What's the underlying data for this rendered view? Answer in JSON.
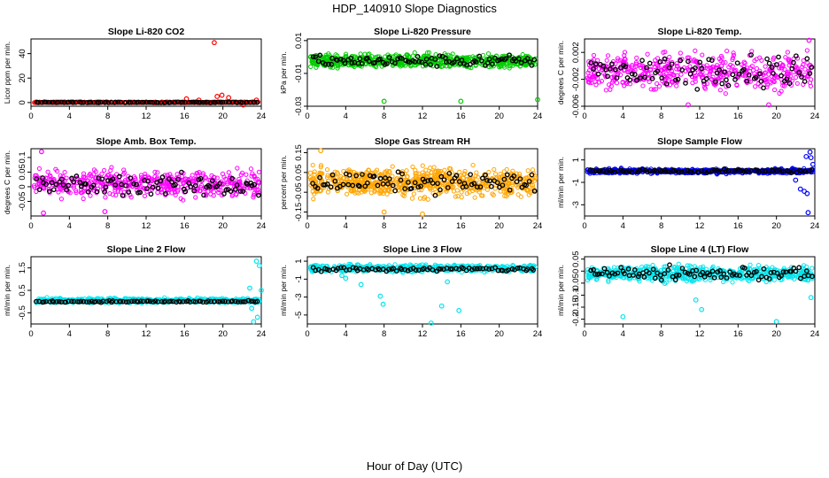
{
  "page": {
    "title": "HDP_140910  Slope Diagnostics",
    "xlabel": "Hour of Day (UTC)"
  },
  "chart_data": [
    {
      "type": "scatter",
      "title": "Slope Li-820 CO2",
      "ylabel": "Licor ppm per min.",
      "xlim": [
        0,
        24
      ],
      "ylim": [
        -3,
        52
      ],
      "xticks": [
        0,
        4,
        8,
        12,
        16,
        20,
        24
      ],
      "yticks": [
        0,
        20,
        40
      ],
      "color": "#ff0000",
      "base": {
        "center": 0.2,
        "spread": 0.6,
        "count": 450
      },
      "outliers": [
        {
          "x": 19.1,
          "y": 49
        },
        {
          "x": 19.4,
          "y": 5
        },
        {
          "x": 19.9,
          "y": 6
        },
        {
          "x": 16.2,
          "y": 3
        },
        {
          "x": 17.5,
          "y": 2
        },
        {
          "x": 20.6,
          "y": 4
        },
        {
          "x": 22.1,
          "y": -2
        },
        {
          "x": 23.5,
          "y": 2
        }
      ],
      "overlay": {
        "center": 0.1,
        "spread": 0.4,
        "count": 90
      }
    },
    {
      "type": "scatter",
      "title": "Slope Li-820 Pressure",
      "ylabel": "kPa per min.",
      "xlim": [
        0,
        24
      ],
      "ylim": [
        -0.03,
        0.011
      ],
      "xticks": [
        0,
        4,
        8,
        12,
        16,
        20,
        24
      ],
      "yticks": [
        -0.03,
        -0.01,
        0.01
      ],
      "color": "#00cc00",
      "base": {
        "center": -0.0025,
        "spread": 0.006,
        "count": 600
      },
      "outliers": [
        {
          "x": 8.0,
          "y": -0.027
        },
        {
          "x": 16.0,
          "y": -0.027
        },
        {
          "x": 24.0,
          "y": -0.026
        }
      ],
      "overlay": {
        "center": -0.0025,
        "spread": 0.005,
        "count": 90
      }
    },
    {
      "type": "scatter",
      "title": "Slope Li-820 Temp.",
      "ylabel": "degrees C per min.",
      "xlim": [
        0,
        24
      ],
      "ylim": [
        -0.006,
        0.004
      ],
      "xticks": [
        0,
        4,
        8,
        12,
        16,
        20,
        24
      ],
      "yticks": [
        -0.006,
        -0.002,
        0.002
      ],
      "color": "#ff00ff",
      "base": {
        "center": -0.0008,
        "spread": 0.0038,
        "count": 500
      },
      "outliers": [
        {
          "x": 10.8,
          "y": -0.0058
        },
        {
          "x": 19.2,
          "y": -0.0058
        },
        {
          "x": 23.4,
          "y": 0.0038
        }
      ],
      "overlay": {
        "center": -0.0008,
        "spread": 0.0035,
        "count": 90
      }
    },
    {
      "type": "scatter",
      "title": "Slope Amb. Box Temp.",
      "ylabel": "degrees C per min.",
      "xlim": [
        0,
        24
      ],
      "ylim": [
        -0.1,
        0.13
      ],
      "xticks": [
        0,
        4,
        8,
        12,
        16,
        20,
        24
      ],
      "yticks": [
        -0.05,
        0.0,
        0.05,
        0.1
      ],
      "color": "#ff00ff",
      "base": {
        "center": 0.01,
        "spread": 0.065,
        "count": 500
      },
      "outliers": [
        {
          "x": 1.1,
          "y": 0.12
        },
        {
          "x": 1.3,
          "y": -0.09
        },
        {
          "x": 7.7,
          "y": -0.085
        }
      ],
      "overlay": {
        "center": 0.005,
        "spread": 0.055,
        "count": 90
      }
    },
    {
      "type": "scatter",
      "title": "Slope Gas Stream RH",
      "ylabel": "percent per min.",
      "xlim": [
        0,
        24
      ],
      "ylim": [
        -0.17,
        0.17
      ],
      "xticks": [
        0,
        4,
        8,
        12,
        16,
        20,
        24
      ],
      "yticks": [
        -0.15,
        -0.05,
        0.05,
        0.15
      ],
      "color": "#ffa500",
      "base": {
        "center": 0.0,
        "spread": 0.1,
        "count": 700
      },
      "outliers": [
        {
          "x": 1.4,
          "y": 0.16
        },
        {
          "x": 12.0,
          "y": -0.16
        },
        {
          "x": 8.0,
          "y": -0.15
        }
      ],
      "overlay": {
        "center": 0.0,
        "spread": 0.07,
        "count": 90
      }
    },
    {
      "type": "scatter",
      "title": "Slope Sample Flow",
      "ylabel": "ml/min per min.",
      "xlim": [
        0,
        24
      ],
      "ylim": [
        -4.0,
        2.0
      ],
      "xticks": [
        0,
        4,
        8,
        12,
        16,
        20,
        24
      ],
      "yticks": [
        -3,
        -1,
        1
      ],
      "color": "#0000ff",
      "base": {
        "center": 0.0,
        "spread": 0.3,
        "count": 600
      },
      "outliers": [
        {
          "x": 22.5,
          "y": -1.6
        },
        {
          "x": 22.9,
          "y": -1.8
        },
        {
          "x": 23.2,
          "y": -2.0
        },
        {
          "x": 23.3,
          "y": -3.7
        },
        {
          "x": 23.5,
          "y": 1.7
        },
        {
          "x": 23.6,
          "y": 1.2
        },
        {
          "x": 23.1,
          "y": 1.3
        },
        {
          "x": 22.0,
          "y": -0.8
        },
        {
          "x": 23.8,
          "y": 0.6
        }
      ],
      "overlay": {
        "center": 0.0,
        "spread": 0.2,
        "count": 90
      }
    },
    {
      "type": "scatter",
      "title": "Slope Line 2 Flow",
      "ylabel": "ml/min per min.",
      "xlim": [
        0,
        24
      ],
      "ylim": [
        -1.0,
        2.0
      ],
      "xticks": [
        0,
        4,
        8,
        12,
        16,
        20,
        24
      ],
      "yticks": [
        -0.5,
        0.5,
        1.5
      ],
      "color": "#00e5ee",
      "base": {
        "center": 0.05,
        "spread": 0.15,
        "count": 500
      },
      "outliers": [
        {
          "x": 23.5,
          "y": 1.8
        },
        {
          "x": 23.8,
          "y": 1.6
        },
        {
          "x": 23.2,
          "y": -0.9
        },
        {
          "x": 23.6,
          "y": -0.7
        },
        {
          "x": 24.0,
          "y": 0.5
        },
        {
          "x": 22.8,
          "y": 0.6
        },
        {
          "x": 23.0,
          "y": -0.3
        }
      ],
      "overlay": {
        "center": 0.0,
        "spread": 0.05,
        "count": 90
      }
    },
    {
      "type": "scatter",
      "title": "Slope Line 3 Flow",
      "ylabel": "ml/min per min.",
      "xlim": [
        0,
        24
      ],
      "ylim": [
        -6.0,
        1.5
      ],
      "xticks": [
        0,
        4,
        8,
        12,
        16,
        20,
        24
      ],
      "yticks": [
        -5,
        -3,
        -1,
        1
      ],
      "color": "#00e5ee",
      "base": {
        "center": 0.2,
        "spread": 0.55,
        "count": 500
      },
      "outliers": [
        {
          "x": 7.6,
          "y": -2.9
        },
        {
          "x": 7.9,
          "y": -3.8
        },
        {
          "x": 12.9,
          "y": -5.9
        },
        {
          "x": 14.0,
          "y": -4.0
        },
        {
          "x": 14.6,
          "y": -1.3
        },
        {
          "x": 15.8,
          "y": -4.5
        },
        {
          "x": 5.6,
          "y": -1.6
        },
        {
          "x": 4.0,
          "y": -0.9
        },
        {
          "x": 3.6,
          "y": -0.6
        }
      ],
      "overlay": {
        "center": 0.1,
        "spread": 0.35,
        "count": 80
      }
    },
    {
      "type": "scatter",
      "title": "Slope Line 4 (LT) Flow",
      "ylabel": "ml/min per min.",
      "xlim": [
        0,
        24
      ],
      "ylim": [
        -0.22,
        0.06
      ],
      "xticks": [
        0,
        4,
        8,
        12,
        16,
        20,
        24
      ],
      "yticks": [
        -0.2,
        -0.15,
        -0.1,
        -0.05,
        0.0,
        0.05
      ],
      "color": "#00e5ee",
      "base": {
        "center": -0.01,
        "spread": 0.045,
        "count": 600
      },
      "outliers": [
        {
          "x": 4.0,
          "y": -0.19
        },
        {
          "x": 20.0,
          "y": -0.21
        },
        {
          "x": 12.2,
          "y": -0.16
        },
        {
          "x": 23.6,
          "y": -0.11
        },
        {
          "x": 11.6,
          "y": -0.12
        }
      ],
      "overlay": {
        "center": -0.01,
        "spread": 0.04,
        "count": 90
      }
    }
  ]
}
